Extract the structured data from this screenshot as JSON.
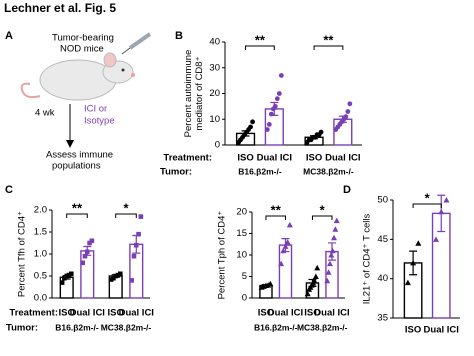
{
  "title": "Lechner et al. Fig. 5",
  "panel_labels": [
    "A",
    "B",
    "C",
    "D"
  ],
  "diagram": {
    "texts": [
      "Tumor-bearing",
      "NOD mice",
      "4 wk",
      "ICI or",
      "Isotype",
      "Assess immune",
      "populations"
    ]
  },
  "chart_data": [
    {
      "type": "bar",
      "ylabel": [
        "Percent autoimmune",
        "mediator of CD8⁺"
      ],
      "ylim": [
        0,
        40
      ],
      "yticks": [
        0,
        10,
        20,
        30,
        40
      ],
      "categories": [
        "ISO",
        "Dual ICI",
        "ISO",
        "Dual ICI"
      ],
      "colors": [
        "#000000",
        "#7b3fb5",
        "#000000",
        "#7b3fb5"
      ],
      "marker": "circle",
      "values": [
        4.5,
        14,
        3,
        10
      ],
      "errors": [
        1,
        2.5,
        0.6,
        1.2
      ],
      "points": [
        [
          1,
          2,
          3,
          4,
          5,
          6,
          7,
          9
        ],
        [
          6,
          8,
          12,
          14,
          15,
          18,
          20,
          27
        ],
        [
          1,
          2,
          2,
          3,
          3,
          4,
          4,
          5
        ],
        [
          6,
          7,
          8,
          9,
          10,
          11,
          13,
          16
        ]
      ],
      "treatment_label": "Treatment:",
      "tumor_label": "Tumor:",
      "groups": [
        "B16.β2m-/-",
        "MC38.β2m-/-"
      ],
      "significance": [
        "**",
        "**"
      ]
    },
    {
      "type": "bar",
      "ylabel": [
        "Percent Tfh of CD4⁺"
      ],
      "ylim": [
        0,
        2
      ],
      "yticks": [
        {
          "value": 0,
          "label": "0.0"
        },
        0.5,
        {
          "value": 1,
          "label": "1.0"
        },
        1.5,
        {
          "value": 2,
          "label": "2.0"
        }
      ],
      "categories": [
        "ISO",
        "Dual ICI",
        "ISO",
        "Dual ICI"
      ],
      "colors": [
        "#000000",
        "#7b3fb5",
        "#000000",
        "#7b3fb5"
      ],
      "marker": "square",
      "values": [
        0.47,
        1.07,
        0.5,
        1.22
      ],
      "errors": [
        0.04,
        0.1,
        0.03,
        0.2
      ],
      "points": [
        [
          0.35,
          0.45,
          0.5,
          0.52,
          0.55
        ],
        [
          0.8,
          0.95,
          1.05,
          1.25,
          1.3
        ],
        [
          0.42,
          0.45,
          0.5,
          0.52,
          0.55
        ],
        [
          0.4,
          0.95,
          1.2,
          1.45,
          1.85
        ]
      ],
      "treatment_label": "Treatment:",
      "tumor_label": "Tumor:",
      "groups": [
        "B16.β2m-/-",
        "MC38.β2m-/-"
      ],
      "significance": [
        "**",
        "*"
      ]
    },
    {
      "type": "bar",
      "ylabel": [
        "Percent Tph of CD4⁺"
      ],
      "ylim": [
        0,
        20
      ],
      "yticks": [
        0,
        5,
        10,
        15,
        20
      ],
      "categories": [
        "ISO",
        "Dual ICI",
        "ISO",
        "Dual ICI"
      ],
      "colors": [
        "#000000",
        "#7b3fb5",
        "#000000",
        "#7b3fb5"
      ],
      "marker": "triangle",
      "values": [
        2.9,
        12.3,
        3.5,
        10.8
      ],
      "errors": [
        0.2,
        1.5,
        0.8,
        2
      ],
      "points": [
        [
          2.5,
          2.7,
          2.9,
          3,
          3.3
        ],
        [
          8,
          11,
          12,
          13,
          17
        ],
        [
          1,
          2,
          2.5,
          3,
          3.5,
          4,
          5,
          7
        ],
        [
          4,
          6,
          8,
          10,
          11,
          14,
          16,
          18
        ]
      ],
      "groups": [
        "B16.β2m-/-",
        "MC38.β2m-/-"
      ],
      "significance": [
        "**",
        "*"
      ]
    },
    {
      "type": "bar",
      "ylabel": [
        "IL21⁺ of CD4⁺ T cells"
      ],
      "ylim": [
        35,
        50
      ],
      "yticks": [
        35,
        40,
        45,
        50
      ],
      "categories": [
        "ISO",
        "Dual ICI"
      ],
      "colors": [
        "#000000",
        "#7b3fb5"
      ],
      "marker": "triangle",
      "values": [
        42,
        48.3
      ],
      "errors": [
        1.5,
        2.3
      ],
      "points": [
        [
          39.5,
          42,
          44.5
        ],
        [
          45,
          48.5,
          50
        ]
      ],
      "significance": [
        "*"
      ]
    }
  ]
}
